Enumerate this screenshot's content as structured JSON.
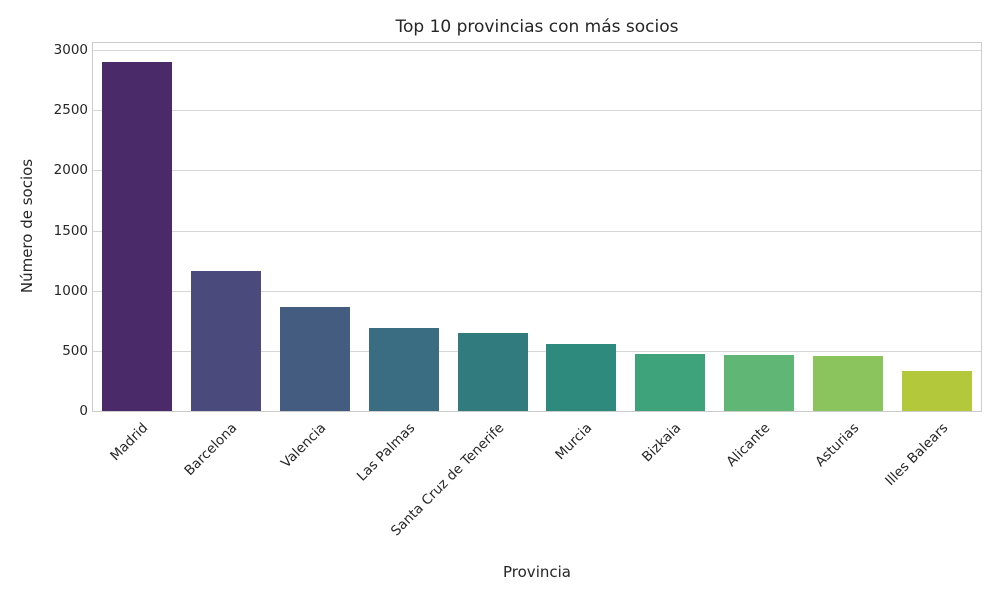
{
  "chart_data": {
    "type": "bar",
    "title": "Top 10 provincias con más socios",
    "xlabel": "Provincia",
    "ylabel": "Número de socios",
    "categories": [
      "Madrid",
      "Barcelona",
      "Valencia",
      "Las Palmas",
      "Santa Cruz de Tenerife",
      "Murcia",
      "Bizkaia",
      "Alicante",
      "Asturias",
      "Illes Balears"
    ],
    "values": [
      2900,
      1165,
      865,
      690,
      645,
      555,
      475,
      465,
      460,
      335
    ],
    "colors": [
      "#4b2a6a",
      "#4a4a7c",
      "#445c80",
      "#3a6c82",
      "#317a7e",
      "#2f8a7e",
      "#3ea27a",
      "#60b674",
      "#8bc45c",
      "#b3c83a"
    ],
    "ylim": [
      0,
      3060
    ],
    "yticks": [
      0,
      500,
      1000,
      1500,
      2000,
      2500,
      3000
    ],
    "ytick_labels": [
      "0",
      "500",
      "1000",
      "1500",
      "2000",
      "2500",
      "3000"
    ],
    "grid": true,
    "legend": null
  }
}
